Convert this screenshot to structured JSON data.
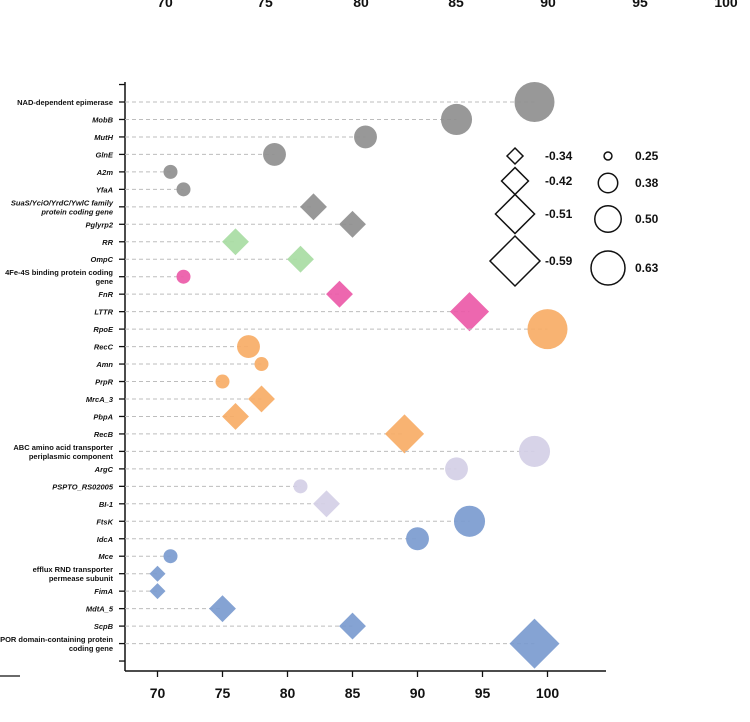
{
  "chart_data": {
    "type": "scatter",
    "xlim": [
      67.5,
      104.5
    ],
    "x_ticks": [
      "70",
      "75",
      "80",
      "85",
      "90",
      "95",
      "100"
    ],
    "top_partial_ticks": [
      "70",
      "75",
      "80",
      "85",
      "90",
      "95",
      "100"
    ],
    "colors": {
      "gray": "#8f8f8f",
      "green": "#a8dca3",
      "pink": "#ec5aa8",
      "orange": "#f7ad66",
      "lavender": "#d4cfe6",
      "blue": "#7b9bcf"
    },
    "rows": [
      {
        "label": "NAD-dependent epimerase",
        "italic": false,
        "x": 99,
        "shape": "circle",
        "value": 0.63,
        "color": "gray"
      },
      {
        "label": "MobB",
        "italic": true,
        "x": 93,
        "shape": "circle",
        "value": 0.5,
        "color": "gray"
      },
      {
        "label": "MutH",
        "italic": true,
        "x": 86,
        "shape": "circle",
        "value": 0.38,
        "color": "gray"
      },
      {
        "label": "GlnE",
        "italic": true,
        "x": 79,
        "shape": "circle",
        "value": 0.38,
        "color": "gray"
      },
      {
        "label": "A2m",
        "italic": true,
        "x": 71,
        "shape": "circle",
        "value": 0.25,
        "color": "gray"
      },
      {
        "label": "YfaA",
        "italic": true,
        "x": 72,
        "shape": "circle",
        "value": 0.25,
        "color": "gray"
      },
      {
        "label": "SuaS/YciO/YrdC/YwlC family protein coding gene",
        "italic": true,
        "x": 82,
        "shape": "diamond",
        "value": -0.42,
        "color": "gray"
      },
      {
        "label": "Pglyrp2",
        "italic": true,
        "x": 85,
        "shape": "diamond",
        "value": -0.42,
        "color": "gray"
      },
      {
        "label": "RR",
        "italic": true,
        "x": 76,
        "shape": "diamond",
        "value": -0.42,
        "color": "green"
      },
      {
        "label": "OmpC",
        "italic": true,
        "x": 81,
        "shape": "diamond",
        "value": -0.42,
        "color": "green"
      },
      {
        "label": "4Fe-4S binding protein coding gene",
        "italic": false,
        "x": 72,
        "shape": "circle",
        "value": 0.25,
        "color": "pink"
      },
      {
        "label": "FnR",
        "italic": true,
        "x": 84,
        "shape": "diamond",
        "value": -0.42,
        "color": "pink"
      },
      {
        "label": "LTTR",
        "italic": true,
        "x": 94,
        "shape": "diamond",
        "value": -0.51,
        "color": "pink"
      },
      {
        "label": "RpoE",
        "italic": true,
        "x": 100,
        "shape": "circle",
        "value": 0.63,
        "color": "orange"
      },
      {
        "label": "RecC",
        "italic": true,
        "x": 77,
        "shape": "circle",
        "value": 0.38,
        "color": "orange"
      },
      {
        "label": "Amn",
        "italic": true,
        "x": 78,
        "shape": "circle",
        "value": 0.25,
        "color": "orange"
      },
      {
        "label": "PrpR",
        "italic": true,
        "x": 75,
        "shape": "circle",
        "value": 0.25,
        "color": "orange"
      },
      {
        "label": "MrcA_3",
        "italic": true,
        "x": 78,
        "shape": "diamond",
        "value": -0.42,
        "color": "orange"
      },
      {
        "label": "PbpA",
        "italic": true,
        "x": 76,
        "shape": "diamond",
        "value": -0.42,
        "color": "orange"
      },
      {
        "label": "RecB",
        "italic": true,
        "x": 89,
        "shape": "diamond",
        "value": -0.51,
        "color": "orange"
      },
      {
        "label": "ABC amino acid transporter periplasmic component",
        "italic": false,
        "x": 99,
        "shape": "circle",
        "value": 0.5,
        "color": "lavender"
      },
      {
        "label": "ArgC",
        "italic": true,
        "x": 93,
        "shape": "circle",
        "value": 0.38,
        "color": "lavender"
      },
      {
        "label": "PSPTO_RS02005",
        "italic": true,
        "x": 81,
        "shape": "circle",
        "value": 0.25,
        "color": "lavender"
      },
      {
        "label": "BI-1",
        "italic": true,
        "x": 83,
        "shape": "diamond",
        "value": -0.42,
        "color": "lavender"
      },
      {
        "label": "FtsK",
        "italic": true,
        "x": 94,
        "shape": "circle",
        "value": 0.5,
        "color": "blue"
      },
      {
        "label": "IdcA",
        "italic": true,
        "x": 90,
        "shape": "circle",
        "value": 0.38,
        "color": "blue"
      },
      {
        "label": "Mce",
        "italic": true,
        "x": 71,
        "shape": "circle",
        "value": 0.25,
        "color": "blue"
      },
      {
        "label": "efflux RND transporter permease subunit",
        "italic": false,
        "x": 70,
        "shape": "diamond",
        "value": -0.34,
        "color": "blue"
      },
      {
        "label": "FimA",
        "italic": true,
        "x": 70,
        "shape": "diamond",
        "value": -0.34,
        "color": "blue"
      },
      {
        "label": "MdtA_5",
        "italic": true,
        "x": 75,
        "shape": "diamond",
        "value": -0.42,
        "color": "blue"
      },
      {
        "label": "ScpB",
        "italic": true,
        "x": 85,
        "shape": "diamond",
        "value": -0.42,
        "color": "blue"
      },
      {
        "label": "SPOR domain-containing protein coding gene",
        "italic": false,
        "x": 99,
        "shape": "diamond",
        "value": -0.59,
        "color": "blue"
      }
    ],
    "legend_diamonds": [
      "-0.34",
      "-0.42",
      "-0.51",
      "-0.59"
    ],
    "legend_circles": [
      "0.25",
      "0.38",
      "0.50",
      "0.63"
    ],
    "legend_position": "top-right"
  }
}
